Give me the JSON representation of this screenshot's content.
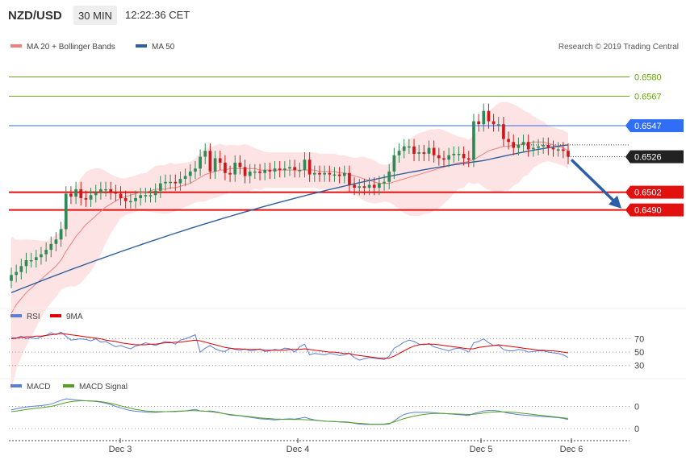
{
  "header": {
    "pair": "NZD/USD",
    "timeframe": "30 MIN",
    "time": "12:22:36 CET"
  },
  "credit": "Research © 2019 Trading Central",
  "colors": {
    "ma20": "#f08080",
    "ma50": "#2e5f9e",
    "rsi": "#5b7fd6",
    "rsi9ma": "#e00000",
    "macd": "#5b7fd6",
    "signal": "#55a020",
    "up": "#2e8b57",
    "down": "#cc1a1a",
    "arrow": "#2a5ea8"
  },
  "chart_data": [
    {
      "type": "candlestick",
      "title": "",
      "legend": [
        "MA 20 + Bollinger Bands",
        "MA 50"
      ],
      "legend_position": "top-left",
      "x_ticks": [
        "Dec 3",
        "Dec 4",
        "Dec 5",
        "Dec 6"
      ],
      "ylim": [
        0.6426,
        0.6595
      ],
      "levels": [
        {
          "value": 0.658,
          "label": "0.6580",
          "kind": "resistance",
          "color": "#6aa316"
        },
        {
          "value": 0.6567,
          "label": "0.6567",
          "kind": "resistance",
          "color": "#6aa316"
        },
        {
          "value": 0.6547,
          "label": "0.6547",
          "kind": "pivot",
          "color": "#2f6ef5"
        },
        {
          "value": 0.6526,
          "label": "0.6526",
          "kind": "last",
          "color": "#222222"
        },
        {
          "value": 0.6502,
          "label": "0.6502",
          "kind": "support",
          "color": "#e31010"
        },
        {
          "value": 0.649,
          "label": "0.6490",
          "kind": "support",
          "color": "#e31010"
        }
      ],
      "close_series": [
        0.6446,
        0.6448,
        0.6452,
        0.6456,
        0.6456,
        0.6458,
        0.646,
        0.6463,
        0.6467,
        0.647,
        0.6477,
        0.6501,
        0.6499,
        0.6504,
        0.6498,
        0.6497,
        0.65,
        0.6502,
        0.6504,
        0.6504,
        0.6502,
        0.6501,
        0.6498,
        0.6496,
        0.6496,
        0.6498,
        0.65,
        0.65,
        0.65,
        0.6503,
        0.6508,
        0.6509,
        0.6509,
        0.6508,
        0.6511,
        0.6513,
        0.6516,
        0.6518,
        0.6526,
        0.653,
        0.6516,
        0.6525,
        0.6522,
        0.6515,
        0.6514,
        0.6522,
        0.6519,
        0.6513,
        0.6516,
        0.6516,
        0.6515,
        0.6517,
        0.6516,
        0.6518,
        0.6517,
        0.6518,
        0.6519,
        0.6517,
        0.6517,
        0.6524,
        0.6514,
        0.6515,
        0.6514,
        0.6515,
        0.6514,
        0.6514,
        0.6513,
        0.6515,
        0.6507,
        0.6505,
        0.6506,
        0.6505,
        0.6507,
        0.6505,
        0.6508,
        0.6509,
        0.6516,
        0.6527,
        0.653,
        0.6533,
        0.6533,
        0.6528,
        0.6529,
        0.6528,
        0.6532,
        0.6527,
        0.6525,
        0.6524,
        0.6527,
        0.6528,
        0.6528,
        0.6525,
        0.6524,
        0.655,
        0.6548,
        0.6557,
        0.655,
        0.6548,
        0.6548,
        0.6538,
        0.6536,
        0.6532,
        0.6534,
        0.6536,
        0.6531,
        0.6532,
        0.6533,
        0.6534,
        0.6532,
        0.6531,
        0.6531,
        0.653,
        0.6526
      ],
      "ma20": [
        0.642,
        0.6426,
        0.643,
        0.6434,
        0.6437,
        0.644,
        0.6443,
        0.6446,
        0.6449,
        0.6452,
        0.6456,
        0.6462,
        0.6467,
        0.6472,
        0.6476,
        0.648,
        0.6483,
        0.6486,
        0.6489,
        0.6492,
        0.6494,
        0.6496,
        0.6498,
        0.6499,
        0.65,
        0.6501,
        0.6502,
        0.6502,
        0.6503,
        0.6504,
        0.6504,
        0.6504,
        0.6505,
        0.6505,
        0.6506,
        0.6507,
        0.6508,
        0.651,
        0.6512,
        0.6514,
        0.6515,
        0.6516,
        0.6517,
        0.6517,
        0.6518,
        0.6518,
        0.6518,
        0.6518,
        0.6518,
        0.6518,
        0.6517,
        0.6517,
        0.6517,
        0.6517,
        0.6517,
        0.6517,
        0.6517,
        0.6517,
        0.6517,
        0.6517,
        0.6517,
        0.6517,
        0.6516,
        0.6516,
        0.6516,
        0.6516,
        0.6515,
        0.6515,
        0.6514,
        0.6513,
        0.6512,
        0.6511,
        0.651,
        0.6509,
        0.6508,
        0.6508,
        0.6508,
        0.6509,
        0.651,
        0.6511,
        0.6512,
        0.6513,
        0.6514,
        0.6515,
        0.6516,
        0.6517,
        0.6518,
        0.6519,
        0.652,
        0.6521,
        0.6522,
        0.6522,
        0.6523,
        0.6524,
        0.6526,
        0.6528,
        0.653,
        0.6531,
        0.6532,
        0.6533,
        0.6533,
        0.6534,
        0.6534,
        0.6535,
        0.6535,
        0.6536,
        0.6536,
        0.6536,
        0.6535,
        0.6534,
        0.6533,
        0.6532,
        0.653
      ]
    },
    {
      "type": "line",
      "legend": [
        "RSI",
        "9MA"
      ],
      "legend_position": "top-left",
      "y_ticks": [
        70,
        50,
        30
      ],
      "ylim": [
        20,
        90
      ],
      "series": [
        {
          "name": "RSI",
          "values": [
            72,
            71,
            74,
            70,
            72,
            70,
            73,
            75,
            79,
            76,
            80,
            74,
            68,
            69,
            70,
            69,
            67,
            70,
            65,
            66,
            62,
            58,
            60,
            57,
            55,
            59,
            61,
            64,
            62,
            60,
            63,
            66,
            65,
            62,
            68,
            70,
            73,
            76,
            50,
            56,
            60,
            55,
            52,
            51,
            56,
            54,
            53,
            55,
            52,
            53,
            55,
            51,
            52,
            54,
            53,
            56,
            55,
            50,
            58,
            62,
            46,
            48,
            47,
            46,
            48,
            47,
            45,
            46,
            48,
            42,
            38,
            40,
            42,
            41,
            40,
            39,
            44,
            56,
            60,
            65,
            68,
            66,
            62,
            61,
            63,
            58,
            56,
            54,
            52,
            55,
            56,
            54,
            50,
            64,
            66,
            70,
            64,
            60,
            60,
            54,
            52,
            52,
            54,
            53,
            50,
            51,
            52,
            52,
            50,
            49,
            48,
            46,
            42
          ]
        },
        {
          "name": "9MA",
          "values": [
            70,
            71,
            72,
            73,
            73,
            74,
            74,
            75,
            76,
            77,
            78,
            77,
            76,
            75,
            74,
            73,
            72,
            71,
            70,
            68,
            67,
            66,
            64,
            63,
            62,
            61,
            61,
            61,
            62,
            62,
            63,
            64,
            64,
            65,
            65,
            66,
            67,
            68,
            67,
            65,
            63,
            61,
            59,
            57,
            56,
            55,
            55,
            54,
            54,
            54,
            54,
            53,
            53,
            53,
            53,
            53,
            54,
            54,
            54,
            55,
            54,
            53,
            52,
            51,
            50,
            50,
            49,
            48,
            48,
            46,
            45,
            44,
            43,
            42,
            41,
            41,
            41,
            44,
            48,
            52,
            56,
            59,
            61,
            62,
            62,
            62,
            61,
            60,
            59,
            58,
            57,
            56,
            55,
            55,
            57,
            58,
            59,
            60,
            61,
            60,
            59,
            58,
            57,
            56,
            55,
            54,
            53,
            53,
            52,
            52,
            51,
            50,
            49
          ]
        }
      ]
    },
    {
      "type": "line",
      "legend": [
        "MACD",
        "MACD Signal"
      ],
      "legend_position": "top-left",
      "y_ticks": [
        "0",
        "0"
      ],
      "ylim": [
        -1.1,
        1.3
      ],
      "series": [
        {
          "name": "MACD",
          "values": [
            0.5,
            0.55,
            0.6,
            0.65,
            0.68,
            0.7,
            0.72,
            0.75,
            0.8,
            0.9,
            1.0,
            1.08,
            1.06,
            1.02,
            1.0,
            0.98,
            0.96,
            0.94,
            0.9,
            0.85,
            0.78,
            0.68,
            0.6,
            0.52,
            0.46,
            0.42,
            0.4,
            0.38,
            0.36,
            0.36,
            0.38,
            0.4,
            0.4,
            0.4,
            0.42,
            0.44,
            0.48,
            0.52,
            0.44,
            0.42,
            0.44,
            0.4,
            0.34,
            0.28,
            0.22,
            0.2,
            0.18,
            0.14,
            0.1,
            0.06,
            0.02,
            0.0,
            -0.02,
            -0.04,
            -0.02,
            0.0,
            0.02,
            0.0,
            0.04,
            0.1,
            0.02,
            -0.04,
            -0.08,
            -0.1,
            -0.12,
            -0.12,
            -0.14,
            -0.14,
            -0.16,
            -0.22,
            -0.26,
            -0.28,
            -0.28,
            -0.28,
            -0.28,
            -0.28,
            -0.26,
            -0.1,
            0.1,
            0.25,
            0.32,
            0.36,
            0.36,
            0.36,
            0.36,
            0.34,
            0.32,
            0.3,
            0.28,
            0.26,
            0.24,
            0.22,
            0.2,
            0.3,
            0.36,
            0.44,
            0.46,
            0.46,
            0.44,
            0.38,
            0.32,
            0.28,
            0.24,
            0.22,
            0.2,
            0.18,
            0.16,
            0.14,
            0.12,
            0.1,
            0.08,
            0.04,
            -0.02
          ]
        },
        {
          "name": "MACD Signal",
          "values": [
            0.4,
            0.43,
            0.47,
            0.51,
            0.55,
            0.58,
            0.61,
            0.64,
            0.68,
            0.74,
            0.81,
            0.88,
            0.93,
            0.96,
            0.98,
            0.98,
            0.97,
            0.96,
            0.93,
            0.89,
            0.84,
            0.78,
            0.71,
            0.64,
            0.58,
            0.52,
            0.48,
            0.44,
            0.42,
            0.4,
            0.4,
            0.4,
            0.41,
            0.42,
            0.43,
            0.44,
            0.45,
            0.45,
            0.44,
            0.42,
            0.4,
            0.37,
            0.33,
            0.29,
            0.25,
            0.22,
            0.19,
            0.16,
            0.13,
            0.1,
            0.07,
            0.05,
            0.03,
            0.01,
            0.0,
            -0.01,
            -0.01,
            -0.02,
            -0.02,
            -0.03,
            -0.04,
            -0.06,
            -0.08,
            -0.1,
            -0.12,
            -0.13,
            -0.15,
            -0.16,
            -0.18,
            -0.2,
            -0.22,
            -0.24,
            -0.26,
            -0.27,
            -0.27,
            -0.26,
            -0.22,
            -0.15,
            -0.06,
            0.03,
            0.1,
            0.16,
            0.21,
            0.25,
            0.28,
            0.3,
            0.3,
            0.3,
            0.29,
            0.28,
            0.27,
            0.26,
            0.25,
            0.26,
            0.29,
            0.33,
            0.36,
            0.38,
            0.39,
            0.39,
            0.38,
            0.36,
            0.34,
            0.31,
            0.28,
            0.25,
            0.22,
            0.19,
            0.16,
            0.13,
            0.1,
            0.07,
            0.04
          ]
        }
      ]
    }
  ]
}
